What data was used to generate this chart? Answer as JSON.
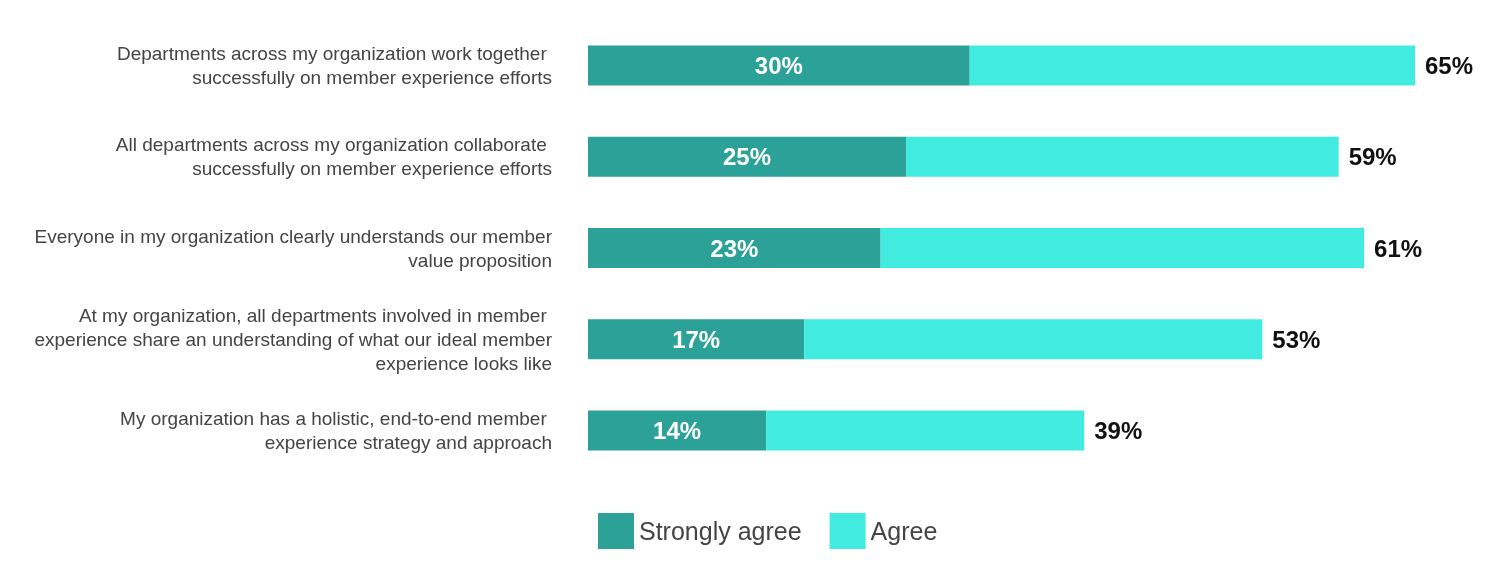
{
  "chart_data": {
    "type": "bar",
    "orientation": "horizontal",
    "stacked": true,
    "categories": [
      "Departments across my organization work together successfully on member experience efforts",
      "All departments across my organization collaborate successfully on member experience efforts",
      "Everyone in my organization clearly understands our member value proposition",
      "At my organization, all departments involved in member experience share an understanding of what our ideal member experience looks like",
      "My organization has a holistic, end-to-end member experience strategy and approach"
    ],
    "series": [
      {
        "name": "Strongly agree",
        "color": "#2ba197",
        "values": [
          30,
          25,
          23,
          17,
          14
        ],
        "value_labels": [
          "30%",
          "25%",
          "23%",
          "17%",
          "14%"
        ]
      },
      {
        "name": "Agree",
        "color": "#41ebe0",
        "values": [
          35,
          34,
          38,
          36,
          25
        ]
      }
    ],
    "totals": [
      "65%",
      "59%",
      "61%",
      "53%",
      "39%"
    ],
    "xlim": [
      0,
      65
    ],
    "tick_labels": "y",
    "legend": "bottom"
  }
}
